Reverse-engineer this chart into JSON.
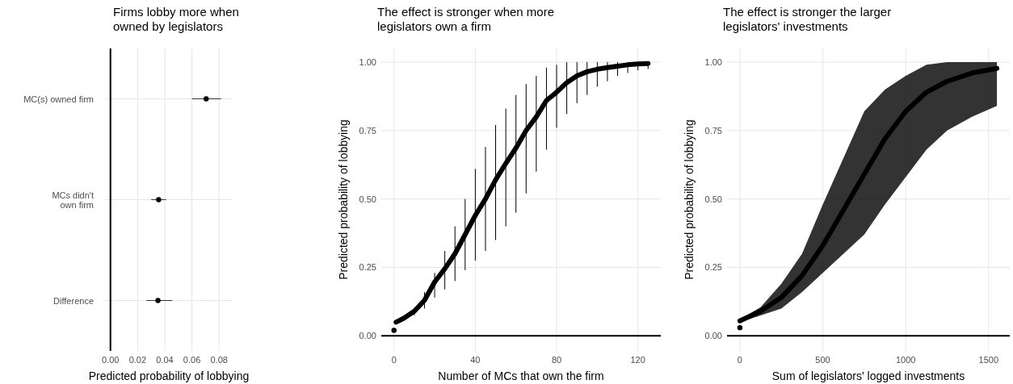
{
  "chart_data": [
    {
      "type": "scatter",
      "orientation": "horizontal",
      "title": "Firms lobby more when\nowned by legislators",
      "xlabel": "Predicted probability of lobbying",
      "categories": [
        "MC(s) owned firm",
        "MCs didn't\nown firm",
        "Difference"
      ],
      "values": [
        0.0705,
        0.0355,
        0.035
      ],
      "errors": [
        [
          0.06,
          0.0815
        ],
        [
          0.03,
          0.041
        ],
        [
          0.0265,
          0.0455
        ]
      ],
      "color": "#000000",
      "xlim": [
        -0.004,
        0.09
      ],
      "xticks": [
        {
          "value": 0,
          "label": "0.00"
        },
        {
          "value": 0.02,
          "label": "0.02"
        },
        {
          "value": 0.04,
          "label": "0.04"
        },
        {
          "value": 0.06,
          "label": "0.06"
        },
        {
          "value": 0.08,
          "label": "0.08"
        }
      ],
      "grid": true
    },
    {
      "type": "line",
      "title": "The effect is stronger when more\nlegislators own a firm",
      "xlabel": "Number of MCs that own the firm",
      "ylabel": "Predicted probability of lobbying",
      "xlim": [
        -6.25,
        131.25
      ],
      "xticks": [
        0,
        40,
        80,
        120
      ],
      "ylim": [
        -0.055,
        1.05
      ],
      "yticks": [
        {
          "value": 0,
          "label": "0.00"
        },
        {
          "value": 0.25,
          "label": "0.25"
        },
        {
          "value": 0.5,
          "label": "0.50"
        },
        {
          "value": 0.75,
          "label": "0.75"
        },
        {
          "value": 1,
          "label": "1.00"
        }
      ],
      "grid": true,
      "series": [
        {
          "type": "scatter",
          "color": "#000000",
          "x": [
            0
          ],
          "values": [
            0.02
          ]
        },
        {
          "type": "line",
          "color": "#000000",
          "x": [
            1,
            5,
            10,
            15,
            20,
            25,
            30,
            35,
            40,
            45,
            50,
            55,
            60,
            65,
            70,
            75,
            80,
            85,
            90,
            95,
            100,
            105,
            110,
            115,
            120,
            125
          ],
          "values": [
            0.05,
            0.065,
            0.09,
            0.13,
            0.197,
            0.245,
            0.3,
            0.37,
            0.44,
            0.5,
            0.57,
            0.63,
            0.686,
            0.75,
            0.8,
            0.86,
            0.89,
            0.925,
            0.95,
            0.965,
            0.974,
            0.98,
            0.985,
            0.99,
            0.993,
            0.995
          ],
          "errors": [
            [
              0.045,
              0.055
            ],
            [
              0.058,
              0.073
            ],
            [
              0.075,
              0.1
            ],
            [
              0.1,
              0.16
            ],
            [
              0.14,
              0.23
            ],
            [
              0.17,
              0.31
            ],
            [
              0.2,
              0.4
            ],
            [
              0.24,
              0.5
            ],
            [
              0.275,
              0.61
            ],
            [
              0.31,
              0.69
            ],
            [
              0.35,
              0.77
            ],
            [
              0.4,
              0.83
            ],
            [
              0.45,
              0.88
            ],
            [
              0.52,
              0.92
            ],
            [
              0.6,
              0.95
            ],
            [
              0.68,
              0.98
            ],
            [
              0.76,
              0.99
            ],
            [
              0.81,
              1
            ],
            [
              0.85,
              1
            ],
            [
              0.88,
              1
            ],
            [
              0.91,
              1
            ],
            [
              0.93,
              1
            ],
            [
              0.95,
              1
            ],
            [
              0.96,
              1
            ],
            [
              0.97,
              1
            ],
            [
              0.975,
              1
            ]
          ]
        }
      ]
    },
    {
      "type": "line",
      "title": "The effect is stronger the larger\nlegislators' investments",
      "xlabel": "Sum of legislators' logged investments",
      "ylabel": "Predicted probability of lobbying",
      "xlim": [
        -77.5,
        1627.5
      ],
      "xticks": [
        0,
        500,
        1000,
        1500
      ],
      "ylim": [
        -0.055,
        1.05
      ],
      "yticks": [
        {
          "value": 0,
          "label": "0.00"
        },
        {
          "value": 0.25,
          "label": "0.25"
        },
        {
          "value": 0.5,
          "label": "0.50"
        },
        {
          "value": 0.75,
          "label": "0.75"
        },
        {
          "value": 1,
          "label": "1.00"
        }
      ],
      "grid": true,
      "series": [
        {
          "type": "scatter",
          "color": "#000000",
          "x": [
            0
          ],
          "values": [
            0.03
          ]
        },
        {
          "type": "line",
          "color": "#000000",
          "x": [
            0,
            125,
            250,
            375,
            500,
            625,
            750,
            875,
            1000,
            1125,
            1250,
            1400,
            1550
          ],
          "values": [
            0.055,
            0.09,
            0.14,
            0.22,
            0.33,
            0.46,
            0.59,
            0.72,
            0.82,
            0.89,
            0.93,
            0.96,
            0.977
          ],
          "lower": [
            0.05,
            0.075,
            0.1,
            0.16,
            0.23,
            0.3,
            0.37,
            0.48,
            0.58,
            0.68,
            0.75,
            0.8,
            0.84
          ],
          "upper": [
            0.06,
            0.105,
            0.19,
            0.3,
            0.48,
            0.65,
            0.82,
            0.9,
            0.95,
            0.99,
            1,
            1,
            1
          ]
        }
      ]
    }
  ]
}
